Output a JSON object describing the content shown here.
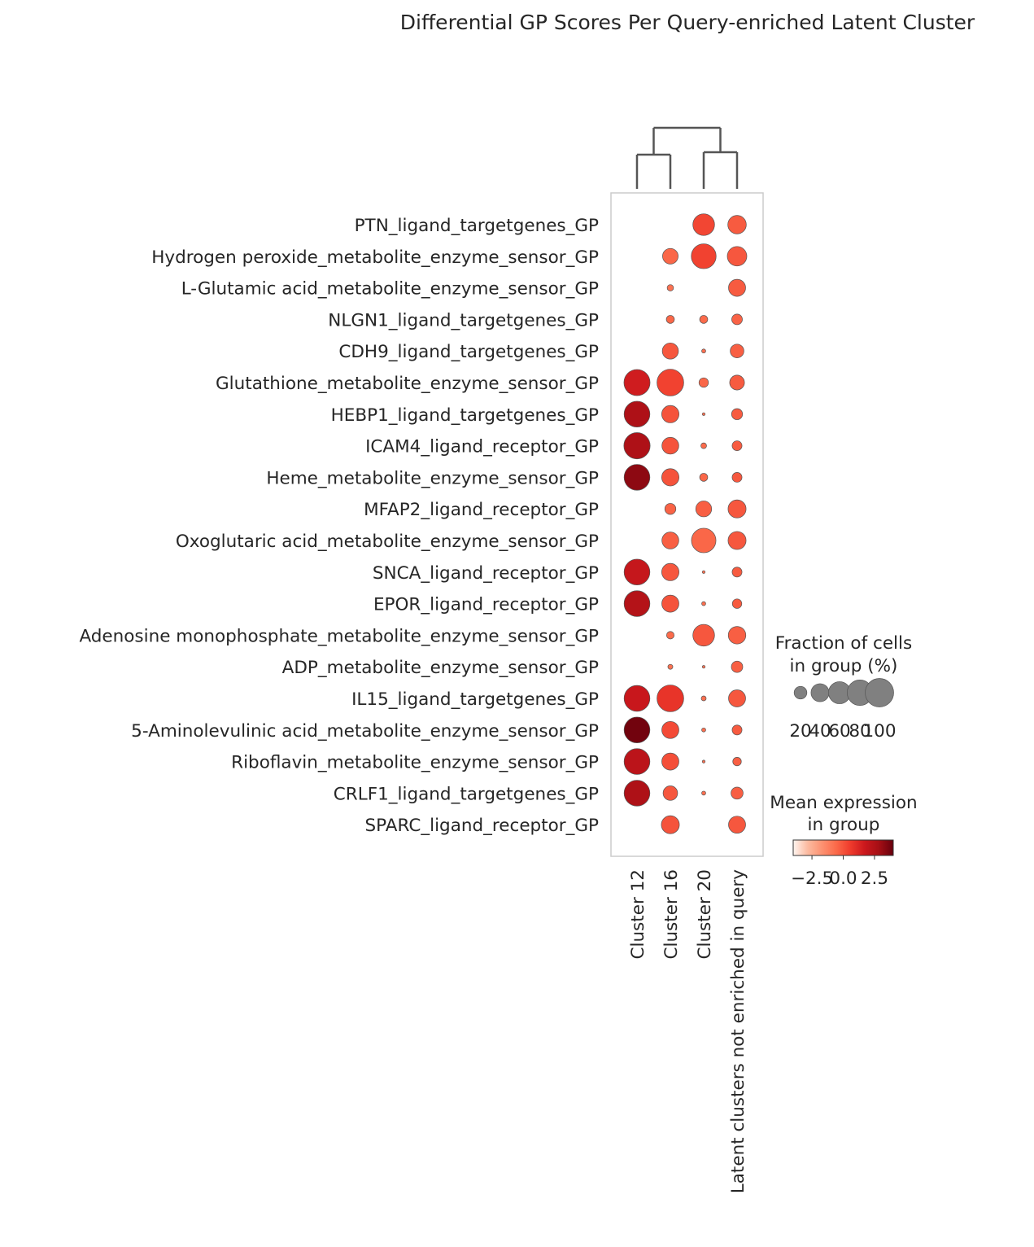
{
  "chart_data": {
    "type": "scatter",
    "subtype": "dotplot",
    "title": "Differential GP Scores Per Query-enriched Latent Cluster",
    "categories": [
      "Cluster 12",
      "Cluster 16",
      "Cluster 20",
      "Latent clusters not enriched in query"
    ],
    "dendrogram": "top",
    "rows": [
      {
        "label": "PTN_ligand_targetgenes_GP",
        "fraction": [
          null,
          null,
          58,
          42
        ],
        "mean": [
          null,
          null,
          0.3,
          -0.2
        ]
      },
      {
        "label": "Hydrogen peroxide_metabolite_enzyme_sensor_GP",
        "fraction": [
          null,
          30,
          76,
          47
        ],
        "mean": [
          null,
          -0.5,
          0.4,
          -0.1
        ]
      },
      {
        "label": "L-Glutamic acid_metabolite_enzyme_sensor_GP",
        "fraction": [
          null,
          5,
          null,
          36
        ],
        "mean": [
          null,
          -0.8,
          null,
          -0.2
        ]
      },
      {
        "label": "NLGN1_ligand_targetgenes_GP",
        "fraction": [
          null,
          8,
          8,
          14
        ],
        "mean": [
          null,
          -0.5,
          -0.6,
          -0.4
        ]
      },
      {
        "label": "CDH9_ligand_targetgenes_GP",
        "fraction": [
          null,
          32,
          2,
          23
        ],
        "mean": [
          null,
          -0.1,
          -0.7,
          -0.3
        ]
      },
      {
        "label": "Glutathione_metabolite_enzyme_sensor_GP",
        "fraction": [
          84,
          88,
          11,
          27
        ],
        "mean": [
          1.6,
          0.4,
          -0.5,
          -0.2
        ]
      },
      {
        "label": "HEBP1_ligand_targetgenes_GP",
        "fraction": [
          82,
          37,
          1,
          15
        ],
        "mean": [
          2.6,
          0.0,
          -0.7,
          -0.2
        ]
      },
      {
        "label": "ICAM4_ligand_receptor_GP",
        "fraction": [
          85,
          35,
          4,
          12
        ],
        "mean": [
          2.6,
          0.0,
          -0.6,
          -0.2
        ]
      },
      {
        "label": "Heme_metabolite_enzyme_sensor_GP",
        "fraction": [
          82,
          37,
          8,
          12
        ],
        "mean": [
          3.3,
          0.0,
          -0.5,
          -0.1
        ]
      },
      {
        "label": "MFAP2_ligand_receptor_GP",
        "fraction": [
          null,
          15,
          31,
          40
        ],
        "mean": [
          null,
          -0.4,
          -0.3,
          -0.1
        ]
      },
      {
        "label": "Oxoglutaric acid_metabolite_enzyme_sensor_GP",
        "fraction": [
          null,
          35,
          74,
          40
        ],
        "mean": [
          null,
          -0.3,
          -0.5,
          -0.1
        ]
      },
      {
        "label": "SNCA_ligand_receptor_GP",
        "fraction": [
          82,
          37,
          1,
          12
        ],
        "mean": [
          1.9,
          -0.1,
          -0.7,
          -0.2
        ]
      },
      {
        "label": "EPOR_ligand_receptor_GP",
        "fraction": [
          82,
          36,
          2,
          11
        ],
        "mean": [
          2.4,
          0.0,
          -0.7,
          -0.2
        ]
      },
      {
        "label": "Adenosine monophosphate_metabolite_enzyme_sensor_GP",
        "fraction": [
          null,
          7,
          58,
          38
        ],
        "mean": [
          null,
          -0.6,
          -0.1,
          -0.3
        ]
      },
      {
        "label": "ADP_metabolite_enzyme_sensor_GP",
        "fraction": [
          null,
          3,
          1,
          16
        ],
        "mean": [
          null,
          -0.8,
          -0.8,
          -0.3
        ]
      },
      {
        "label": "IL15_ligand_targetgenes_GP",
        "fraction": [
          82,
          88,
          3,
          36
        ],
        "mean": [
          1.8,
          0.8,
          -0.7,
          -0.1
        ]
      },
      {
        "label": "5-Aminolevulinic acid_metabolite_enzyme_sensor_GP",
        "fraction": [
          82,
          36,
          2,
          12
        ],
        "mean": [
          3.8,
          0.2,
          -0.7,
          -0.2
        ]
      },
      {
        "label": "Riboflavin_metabolite_enzyme_sensor_GP",
        "fraction": [
          82,
          36,
          1,
          9
        ],
        "mean": [
          2.2,
          0.1,
          -0.7,
          -0.3
        ]
      },
      {
        "label": "CRLF1_ligand_targetgenes_GP",
        "fraction": [
          82,
          26,
          2,
          18
        ],
        "mean": [
          2.6,
          -0.1,
          -0.7,
          -0.3
        ]
      },
      {
        "label": "SPARC_ligand_receptor_GP",
        "fraction": [
          null,
          40,
          null,
          36
        ],
        "mean": [
          null,
          0.0,
          null,
          -0.1
        ]
      }
    ],
    "size_legend": {
      "title_lines": [
        "Fraction of cells",
        "in group (%)"
      ],
      "values": [
        20,
        40,
        60,
        80,
        100
      ],
      "labels": [
        "20",
        "40",
        "60",
        "80",
        "100"
      ],
      "marker_color": "#808080"
    },
    "color_legend": {
      "title_lines": [
        "Mean expression",
        "in group"
      ],
      "range": [
        -4.0,
        4.0
      ],
      "ticks": [
        -2.5,
        0.0,
        2.5
      ],
      "tick_labels": [
        "−2.5",
        "0.0",
        "2.5"
      ],
      "colormap": "Reds",
      "colors": [
        "#fff5f0",
        "#fcbba1",
        "#fc9272",
        "#fb6a4a",
        "#ef3b2c",
        "#cb181d",
        "#a50f15",
        "#67000d"
      ]
    },
    "grid": false,
    "legend_placement": "right"
  }
}
